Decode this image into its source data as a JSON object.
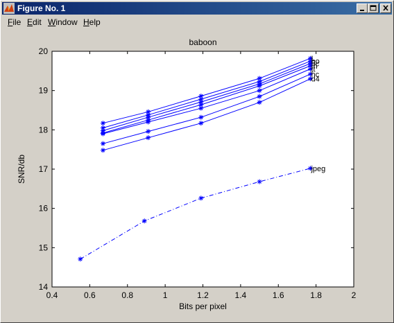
{
  "window": {
    "title": "Figure No. 1",
    "controls": [
      "minimize",
      "maximize",
      "close"
    ]
  },
  "menu": {
    "items": [
      {
        "label": "File",
        "mnemonic": "F",
        "rest": "ile"
      },
      {
        "label": "Edit",
        "mnemonic": "E",
        "rest": "dit"
      },
      {
        "label": "Window",
        "mnemonic": "W",
        "rest": "indow"
      },
      {
        "label": "Help",
        "mnemonic": "H",
        "rest": "elp"
      }
    ]
  },
  "colors": {
    "series": "#0000ff",
    "axes_bg": "#ffffff",
    "figure_bg": "#d4d0c8"
  },
  "chart_data": {
    "type": "line",
    "title": "baboon",
    "xlabel": "Bits per pixel",
    "ylabel": "SNR/db",
    "xlim": [
      0.4,
      2
    ],
    "ylim": [
      14,
      20
    ],
    "xticks": [
      "0.4",
      "0.6",
      "0.8",
      "1",
      "1.2",
      "1.4",
      "1.6",
      "1.8",
      "2"
    ],
    "yticks": [
      "14",
      "15",
      "16",
      "17",
      "18",
      "19",
      "20"
    ],
    "grid": false,
    "series": [
      {
        "name": "L",
        "style": "solid",
        "x": [
          0.67,
          0.91,
          1.19,
          1.5,
          1.77
        ],
        "y": [
          18.17,
          18.46,
          18.86,
          19.31,
          19.82
        ]
      },
      {
        "name": "bo",
        "style": "solid",
        "x": [
          0.67,
          0.91,
          1.19,
          1.5,
          1.77
        ],
        "y": [
          18.05,
          18.38,
          18.78,
          19.23,
          19.75
        ]
      },
      {
        "name": "bc",
        "style": "solid",
        "x": [
          0.67,
          0.91,
          1.19,
          1.5,
          1.77
        ],
        "y": [
          17.98,
          18.32,
          18.71,
          19.17,
          19.69
        ]
      },
      {
        "name": "m",
        "style": "solid",
        "x": [
          0.67,
          0.91,
          1.19,
          1.5,
          1.77
        ],
        "y": [
          17.92,
          18.25,
          18.64,
          19.12,
          19.63
        ]
      },
      {
        "name": "tt",
        "style": "solid",
        "x": [
          0.67,
          0.91,
          1.19,
          1.5,
          1.77
        ],
        "y": [
          17.9,
          18.2,
          18.55,
          19.0,
          19.55
        ]
      },
      {
        "name": "hc",
        "style": "solid",
        "x": [
          0.67,
          0.91,
          1.19,
          1.5,
          1.77
        ],
        "y": [
          17.65,
          17.96,
          18.32,
          18.85,
          19.42
        ]
      },
      {
        "name": "d4",
        "style": "solid",
        "x": [
          0.67,
          0.91,
          1.19,
          1.5,
          1.77
        ],
        "y": [
          17.48,
          17.8,
          18.17,
          18.7,
          19.3
        ]
      },
      {
        "name": "jpeg",
        "style": "dashdot",
        "x": [
          0.55,
          0.89,
          1.19,
          1.5,
          1.77
        ],
        "y": [
          14.71,
          15.68,
          16.26,
          16.68,
          17.02
        ]
      }
    ]
  }
}
